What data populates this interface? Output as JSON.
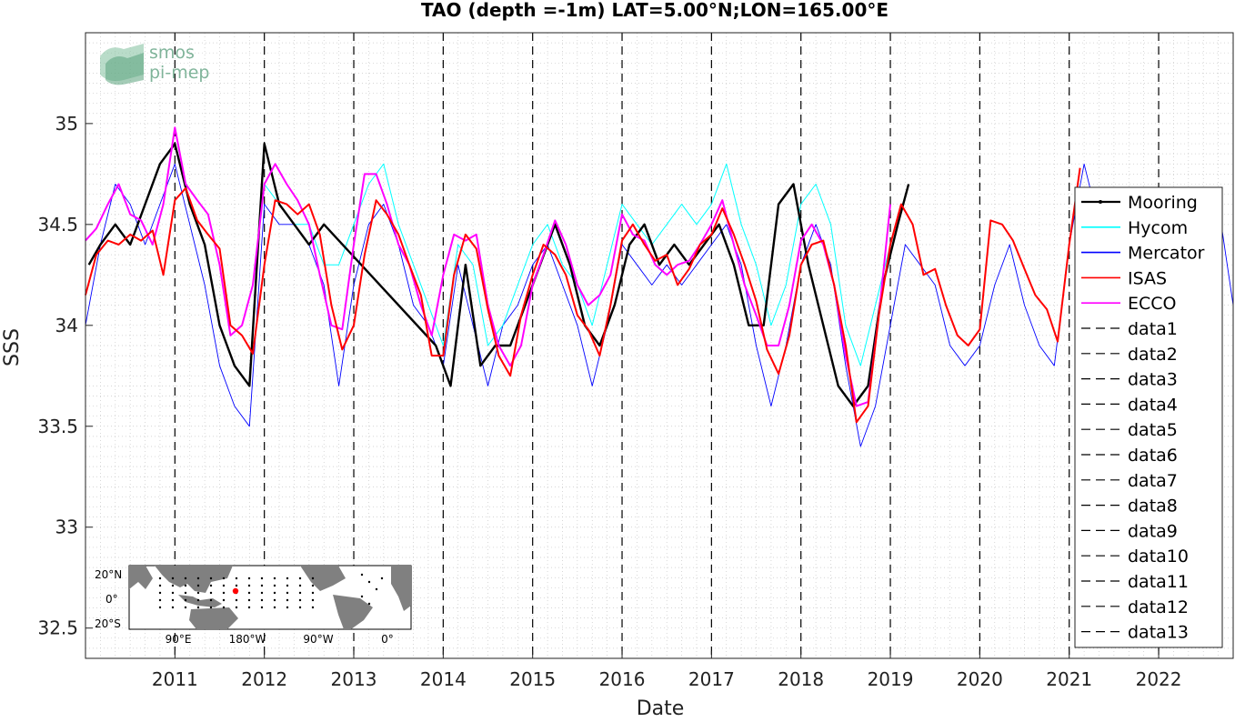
{
  "chart_data": {
    "type": "line",
    "title": "TAO (depth =-1m) LAT=5.00°N;LON=165.00°E",
    "xlabel": "Date",
    "ylabel": "SSS",
    "xlim": [
      "2010-01-01",
      "2022-11-01"
    ],
    "ylim": [
      32.35,
      35.45
    ],
    "x_ticks": [
      "2011",
      "2012",
      "2013",
      "2014",
      "2015",
      "2016",
      "2017",
      "2018",
      "2019",
      "2020",
      "2021",
      "2022"
    ],
    "y_ticks": [
      "32.5",
      "33",
      "33.5",
      "34",
      "34.5",
      "35"
    ],
    "grid": "minor dotted",
    "legend_position": "right",
    "legend": [
      "Mooring",
      "Hycom",
      "Mercator",
      "ISAS",
      "ECCO",
      "data1",
      "data2",
      "data3",
      "data4",
      "data5",
      "data6",
      "data7",
      "data8",
      "data9",
      "data10",
      "data11",
      "data12",
      "data13"
    ],
    "colors": {
      "Mooring": "#000000",
      "Hycom": "#00ffff",
      "Mercator": "#0000ff",
      "ISAS": "#ff0000",
      "ECCO": "#ff00ff",
      "data": "#000000"
    },
    "vertical_lines": [
      "2011-01-01",
      "2012-01-01",
      "2013-01-01",
      "2014-01-01",
      "2015-01-01",
      "2016-01-01",
      "2017-01-01",
      "2018-01-01",
      "2019-01-01",
      "2020-01-01",
      "2021-01-01",
      "2022-01-01"
    ],
    "series": [
      {
        "name": "Mooring",
        "x": [
          "2010-01-15",
          "2010-03-01",
          "2010-05-01",
          "2010-07-01",
          "2010-09-01",
          "2010-11-01",
          "2011-01-01",
          "2011-03-01",
          "2011-05-01",
          "2011-07-01",
          "2011-09-01",
          "2011-11-01",
          "2012-01-01",
          "2012-03-01",
          "2012-05-01",
          "2012-07-01",
          "2012-09-01",
          "2013-12-01",
          "2014-02-01",
          "2014-04-01",
          "2014-06-01",
          "2014-08-01",
          "2014-10-01",
          "2014-12-01",
          "2015-02-01",
          "2015-04-01",
          "2015-06-01",
          "2015-08-01",
          "2015-10-01",
          "2015-12-01",
          "2016-02-01",
          "2016-04-01",
          "2016-06-01",
          "2016-08-01",
          "2016-10-01",
          "2016-12-01",
          "2017-02-01",
          "2017-04-01",
          "2017-06-01",
          "2017-08-01",
          "2017-10-01",
          "2017-12-01",
          "2018-02-01",
          "2018-04-01",
          "2018-06-01",
          "2018-08-01",
          "2018-10-01",
          "2018-12-01",
          "2019-02-01",
          "2019-03-15"
        ],
        "values": [
          34.3,
          34.4,
          34.5,
          34.4,
          34.6,
          34.8,
          34.9,
          34.6,
          34.4,
          34.0,
          33.8,
          33.7,
          34.9,
          34.6,
          34.5,
          34.4,
          34.5,
          33.9,
          33.7,
          34.3,
          33.8,
          33.9,
          33.9,
          34.1,
          34.3,
          34.5,
          34.3,
          34.0,
          33.9,
          34.1,
          34.4,
          34.5,
          34.3,
          34.4,
          34.3,
          34.4,
          34.5,
          34.3,
          34.0,
          34.0,
          34.6,
          34.7,
          34.3,
          34.0,
          33.7,
          33.6,
          33.7,
          34.2,
          34.5,
          34.7
        ]
      },
      {
        "name": "Hycom",
        "x": [
          "2012-01-01",
          "2012-03-01",
          "2012-05-01",
          "2012-07-01",
          "2012-09-01",
          "2012-11-01",
          "2013-01-01",
          "2013-03-01",
          "2013-05-01",
          "2013-07-01",
          "2013-09-01",
          "2013-11-01",
          "2014-01-01",
          "2014-03-01",
          "2014-05-01",
          "2014-07-01",
          "2014-09-01",
          "2014-11-01",
          "2015-01-01",
          "2015-03-01",
          "2015-05-01",
          "2015-07-01",
          "2015-09-01",
          "2015-11-01",
          "2016-01-01",
          "2016-03-01",
          "2016-05-01",
          "2016-07-01",
          "2016-09-01",
          "2016-11-01",
          "2017-01-01",
          "2017-03-01",
          "2017-05-01",
          "2017-07-01",
          "2017-09-01",
          "2017-11-01",
          "2018-01-01",
          "2018-03-01",
          "2018-05-01",
          "2018-07-01",
          "2018-09-01",
          "2018-11-01",
          "2019-01-01"
        ],
        "values": [
          34.7,
          34.6,
          34.5,
          34.5,
          34.3,
          34.3,
          34.5,
          34.7,
          34.8,
          34.5,
          34.3,
          34.1,
          33.9,
          34.4,
          34.3,
          33.9,
          34.0,
          34.2,
          34.4,
          34.5,
          34.3,
          34.2,
          34.0,
          34.3,
          34.6,
          34.5,
          34.4,
          34.5,
          34.6,
          34.5,
          34.6,
          34.8,
          34.5,
          34.3,
          34.0,
          34.2,
          34.6,
          34.7,
          34.5,
          34.0,
          33.8,
          34.1,
          34.4
        ]
      },
      {
        "name": "Mercator",
        "x": [
          "2010-01-01",
          "2010-03-01",
          "2010-05-01",
          "2010-07-01",
          "2010-09-01",
          "2010-11-01",
          "2011-01-01",
          "2011-03-01",
          "2011-05-01",
          "2011-07-01",
          "2011-09-01",
          "2011-11-01",
          "2012-01-01",
          "2012-03-01",
          "2012-05-01",
          "2012-07-01",
          "2012-09-01",
          "2012-11-01",
          "2013-01-01",
          "2013-03-01",
          "2013-05-01",
          "2013-07-01",
          "2013-09-01",
          "2013-11-01",
          "2014-01-01",
          "2014-03-01",
          "2014-05-01",
          "2014-07-01",
          "2014-09-01",
          "2014-11-01",
          "2015-01-01",
          "2015-03-01",
          "2015-05-01",
          "2015-07-01",
          "2015-09-01",
          "2015-11-01",
          "2016-01-01",
          "2016-03-01",
          "2016-05-01",
          "2016-07-01",
          "2016-09-01",
          "2016-11-01",
          "2017-01-01",
          "2017-03-01",
          "2017-05-01",
          "2017-07-01",
          "2017-09-01",
          "2017-11-01",
          "2018-01-01",
          "2018-03-01",
          "2018-05-01",
          "2018-07-01",
          "2018-09-01",
          "2018-11-01",
          "2019-01-01",
          "2019-03-01",
          "2019-05-01",
          "2019-07-01",
          "2019-09-01",
          "2019-11-01",
          "2020-01-01",
          "2020-03-01",
          "2020-05-01",
          "2020-07-01",
          "2020-09-01",
          "2020-11-01",
          "2021-01-01",
          "2021-03-01",
          "2021-05-01",
          "2021-07-01",
          "2021-09-01",
          "2021-11-01",
          "2022-01-01",
          "2022-03-01",
          "2022-05-01",
          "2022-07-01",
          "2022-09-01",
          "2022-11-01"
        ],
        "values": [
          34.0,
          34.4,
          34.7,
          34.6,
          34.4,
          34.6,
          34.8,
          34.5,
          34.2,
          33.8,
          33.6,
          33.5,
          34.6,
          34.5,
          34.5,
          34.4,
          34.2,
          33.7,
          34.2,
          34.5,
          34.6,
          34.4,
          34.1,
          34.0,
          33.8,
          34.3,
          34.0,
          33.7,
          34.0,
          34.1,
          34.3,
          34.4,
          34.2,
          34.0,
          33.7,
          34.0,
          34.4,
          34.3,
          34.2,
          34.3,
          34.2,
          34.3,
          34.4,
          34.5,
          34.3,
          33.9,
          33.6,
          33.9,
          34.3,
          34.5,
          34.3,
          33.8,
          33.4,
          33.6,
          34.0,
          34.4,
          34.3,
          34.2,
          33.9,
          33.8,
          33.9,
          34.2,
          34.4,
          34.1,
          33.9,
          33.8,
          34.4,
          34.8,
          34.5,
          34.2,
          34.0,
          34.1,
          34.4,
          34.5,
          34.4,
          34.5,
          34.6,
          34.1
        ]
      },
      {
        "name": "ISAS",
        "x": [
          "2010-01-01",
          "2010-02-15",
          "2010-04-01",
          "2010-05-15",
          "2010-07-01",
          "2010-08-15",
          "2010-10-01",
          "2010-11-15",
          "2011-01-01",
          "2011-02-15",
          "2011-04-01",
          "2011-05-15",
          "2011-07-01",
          "2011-08-15",
          "2011-10-01",
          "2011-11-15",
          "2012-01-01",
          "2012-02-15",
          "2012-04-01",
          "2012-05-15",
          "2012-07-01",
          "2012-08-15",
          "2012-10-01",
          "2012-11-15",
          "2013-01-01",
          "2013-02-15",
          "2013-04-01",
          "2013-05-15",
          "2013-07-01",
          "2013-08-15",
          "2013-10-01",
          "2013-11-15",
          "2014-01-01",
          "2014-02-15",
          "2014-04-01",
          "2014-05-15",
          "2014-07-01",
          "2014-08-15",
          "2014-10-01",
          "2014-11-15",
          "2015-01-01",
          "2015-02-15",
          "2015-04-01",
          "2015-05-15",
          "2015-07-01",
          "2015-08-15",
          "2015-10-01",
          "2015-11-15",
          "2016-01-01",
          "2016-02-15",
          "2016-04-01",
          "2016-05-15",
          "2016-07-01",
          "2016-08-15",
          "2016-10-01",
          "2016-11-15",
          "2017-01-01",
          "2017-02-15",
          "2017-04-01",
          "2017-05-15",
          "2017-07-01",
          "2017-08-15",
          "2017-10-01",
          "2017-11-15",
          "2018-01-01",
          "2018-02-15",
          "2018-04-01",
          "2018-05-15",
          "2018-07-01",
          "2018-08-15",
          "2018-10-01",
          "2018-11-15",
          "2019-01-01",
          "2019-02-15",
          "2019-04-01",
          "2019-05-15",
          "2019-07-01",
          "2019-08-15",
          "2019-10-01",
          "2019-11-15",
          "2020-01-01",
          "2020-02-15",
          "2020-04-01",
          "2020-05-15",
          "2020-07-01",
          "2020-08-15",
          "2020-10-01",
          "2020-11-15",
          "2021-01-01",
          "2021-02-15"
        ],
        "values": [
          34.15,
          34.35,
          34.42,
          34.4,
          34.45,
          34.42,
          34.47,
          34.25,
          34.62,
          34.68,
          34.52,
          34.45,
          34.38,
          34.0,
          33.95,
          33.86,
          34.3,
          34.62,
          34.6,
          34.55,
          34.6,
          34.45,
          34.1,
          33.88,
          34.0,
          34.35,
          34.62,
          34.55,
          34.45,
          34.3,
          34.15,
          33.85,
          33.85,
          34.25,
          34.45,
          34.38,
          34.08,
          33.85,
          33.75,
          34.05,
          34.25,
          34.4,
          34.35,
          34.25,
          34.05,
          33.98,
          33.85,
          34.1,
          34.42,
          34.5,
          34.4,
          34.32,
          34.35,
          34.2,
          34.28,
          34.4,
          34.45,
          34.58,
          34.45,
          34.3,
          34.12,
          33.88,
          33.76,
          33.95,
          34.3,
          34.4,
          34.42,
          34.2,
          33.9,
          33.52,
          33.6,
          34.05,
          34.4,
          34.6,
          34.5,
          34.25,
          34.28,
          34.1,
          33.95,
          33.9,
          33.98,
          34.52,
          34.5,
          34.42,
          34.28,
          34.15,
          34.08,
          33.92,
          34.4,
          34.78
        ]
      },
      {
        "name": "ECCO",
        "x": [
          "2010-01-01",
          "2010-02-15",
          "2010-04-01",
          "2010-05-15",
          "2010-07-01",
          "2010-08-15",
          "2010-10-01",
          "2010-11-15",
          "2011-01-01",
          "2011-02-15",
          "2011-04-01",
          "2011-05-15",
          "2011-07-01",
          "2011-08-15",
          "2011-10-01",
          "2011-11-15",
          "2012-01-01",
          "2012-02-15",
          "2012-04-01",
          "2012-05-15",
          "2012-07-01",
          "2012-08-15",
          "2012-10-01",
          "2012-11-15",
          "2013-01-01",
          "2013-02-15",
          "2013-04-01",
          "2013-05-15",
          "2013-07-01",
          "2013-08-15",
          "2013-10-01",
          "2013-11-15",
          "2014-01-01",
          "2014-02-15",
          "2014-04-01",
          "2014-05-15",
          "2014-07-01",
          "2014-08-15",
          "2014-10-01",
          "2014-11-15",
          "2015-01-01",
          "2015-02-15",
          "2015-04-01",
          "2015-05-15",
          "2015-07-01",
          "2015-08-15",
          "2015-10-01",
          "2015-11-15",
          "2016-01-01",
          "2016-02-15",
          "2016-04-01",
          "2016-05-15",
          "2016-07-01",
          "2016-08-15",
          "2016-10-01",
          "2016-11-15",
          "2017-01-01",
          "2017-02-15",
          "2017-04-01",
          "2017-05-15",
          "2017-07-01",
          "2017-08-15",
          "2017-10-01",
          "2017-11-15",
          "2018-01-01",
          "2018-02-15",
          "2018-04-01",
          "2018-05-15",
          "2018-07-01",
          "2018-08-15",
          "2018-10-01",
          "2018-11-15",
          "2019-01-01"
        ],
        "values": [
          34.42,
          34.48,
          34.6,
          34.7,
          34.55,
          34.52,
          34.4,
          34.6,
          34.98,
          34.7,
          34.62,
          34.55,
          34.3,
          33.95,
          34.0,
          34.2,
          34.7,
          34.8,
          34.7,
          34.62,
          34.5,
          34.25,
          34.0,
          33.98,
          34.4,
          34.75,
          34.75,
          34.6,
          34.4,
          34.3,
          34.1,
          33.95,
          34.25,
          34.45,
          34.42,
          34.45,
          34.1,
          33.9,
          33.8,
          33.9,
          34.2,
          34.35,
          34.52,
          34.4,
          34.2,
          34.1,
          34.15,
          34.25,
          34.55,
          34.45,
          34.42,
          34.3,
          34.25,
          34.3,
          34.32,
          34.4,
          34.5,
          34.62,
          34.4,
          34.2,
          34.05,
          33.9,
          33.9,
          34.1,
          34.42,
          34.5,
          34.4,
          34.2,
          33.85,
          33.6,
          33.62,
          34.05,
          34.6
        ]
      }
    ]
  },
  "inset_map": {
    "y_labels": [
      "20°N",
      "0°",
      "20°S"
    ],
    "x_labels": [
      "90°E",
      "180°W",
      "90°W",
      "0°"
    ]
  },
  "logo": {
    "line1": "smos",
    "line2": "pi-mep"
  }
}
